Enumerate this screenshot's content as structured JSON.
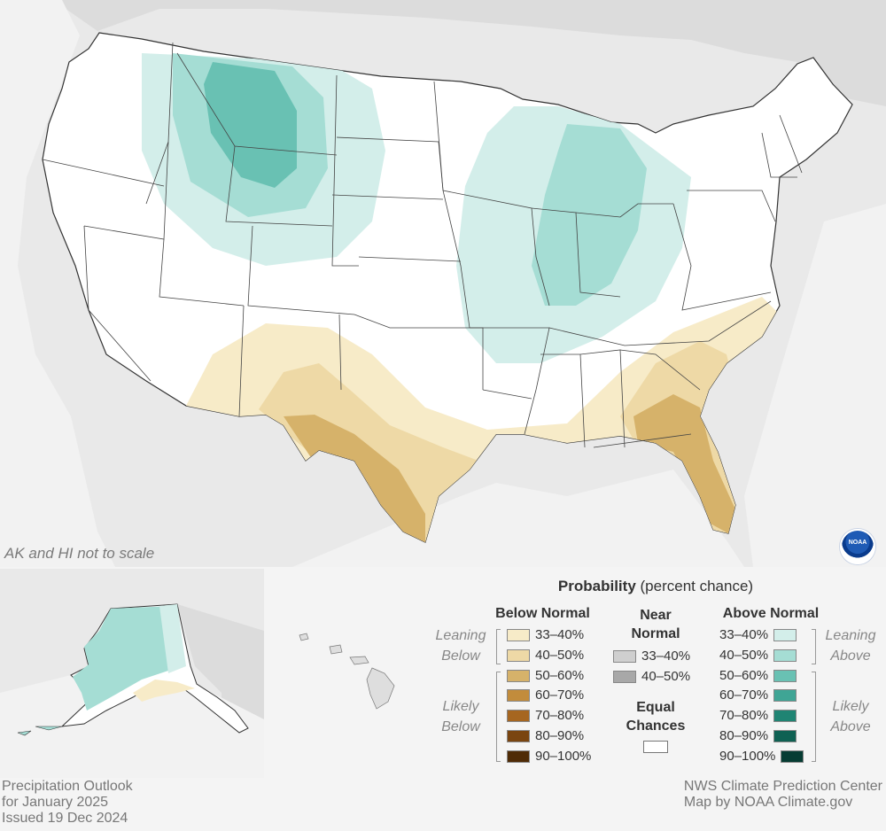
{
  "map_title": {
    "line1": "Precipitation Outlook",
    "line2": "for January 2025",
    "line3": "Issued 19 Dec 2024"
  },
  "credits": {
    "line1": "NWS Climate Prediction Center",
    "line2": "Map by NOAA Climate.gov"
  },
  "scale_note": "AK and HI not to scale",
  "logo_text": "NOAA",
  "legend": {
    "title_bold": "Probability",
    "title_rest": " (percent chance)",
    "below_header": "Below Normal",
    "near_header_1": "Near",
    "near_header_2": "Normal",
    "above_header": "Above Normal",
    "equal_1": "Equal",
    "equal_2": "Chances",
    "leaning_below_1": "Leaning",
    "leaning_below_2": "Below",
    "likely_below_1": "Likely",
    "likely_below_2": "Below",
    "leaning_above_1": "Leaning",
    "leaning_above_2": "Above",
    "likely_above_1": "Likely",
    "likely_above_2": "Above",
    "below": [
      {
        "label": "33–40%",
        "color": "#f7ebc8"
      },
      {
        "label": "40–50%",
        "color": "#eed9a6"
      },
      {
        "label": "50–60%",
        "color": "#d6b26a"
      },
      {
        "label": "60–70%",
        "color": "#c28c3c"
      },
      {
        "label": "70–80%",
        "color": "#a66620"
      },
      {
        "label": "80–90%",
        "color": "#7a4510"
      },
      {
        "label": "90–100%",
        "color": "#4f2b06"
      }
    ],
    "near": [
      {
        "label": "33–40%",
        "color": "#cfcfcf"
      },
      {
        "label": "40–50%",
        "color": "#a8a8a8"
      }
    ],
    "above": [
      {
        "label": "33–40%",
        "color": "#d3eeea"
      },
      {
        "label": "40–50%",
        "color": "#a5ddd4"
      },
      {
        "label": "50–60%",
        "color": "#69c1b3"
      },
      {
        "label": "60–70%",
        "color": "#3fa595"
      },
      {
        "label": "70–80%",
        "color": "#1f8473"
      },
      {
        "label": "80–90%",
        "color": "#0f6153"
      },
      {
        "label": "90–100%",
        "color": "#063c33"
      }
    ]
  }
}
